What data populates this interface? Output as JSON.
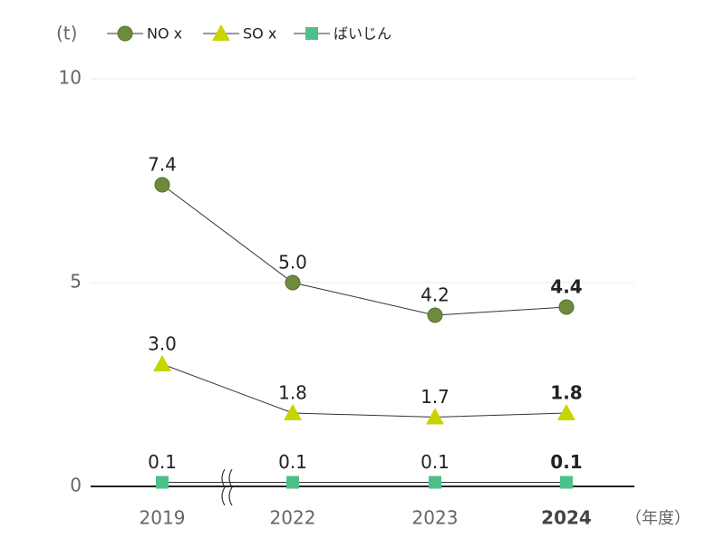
{
  "chart_data": {
    "type": "line",
    "y_unit": "(t)",
    "x_unit": "（年度）",
    "categories": [
      "2019",
      "2022",
      "2023",
      "2024"
    ],
    "series": [
      {
        "name": "NO x",
        "color": "#6e8b3d",
        "marker": "circle",
        "values": [
          7.4,
          5.0,
          4.2,
          4.4
        ],
        "value_labels": [
          "7.4",
          "5.0",
          "4.2",
          "4.4"
        ]
      },
      {
        "name": "SO x",
        "color": "#c8d400",
        "marker": "triangle",
        "values": [
          3.0,
          1.8,
          1.7,
          1.8
        ],
        "value_labels": [
          "3.0",
          "1.8",
          "1.7",
          "1.8"
        ]
      },
      {
        "name": "ばいじん",
        "color": "#4dc08a",
        "marker": "square",
        "values": [
          0.1,
          0.1,
          0.1,
          0.1
        ],
        "value_labels": [
          "0.1",
          "0.1",
          "0.1",
          "0.1"
        ]
      }
    ],
    "ylim": [
      0,
      10
    ],
    "yticks": [
      0,
      5,
      10
    ],
    "grid": true
  }
}
